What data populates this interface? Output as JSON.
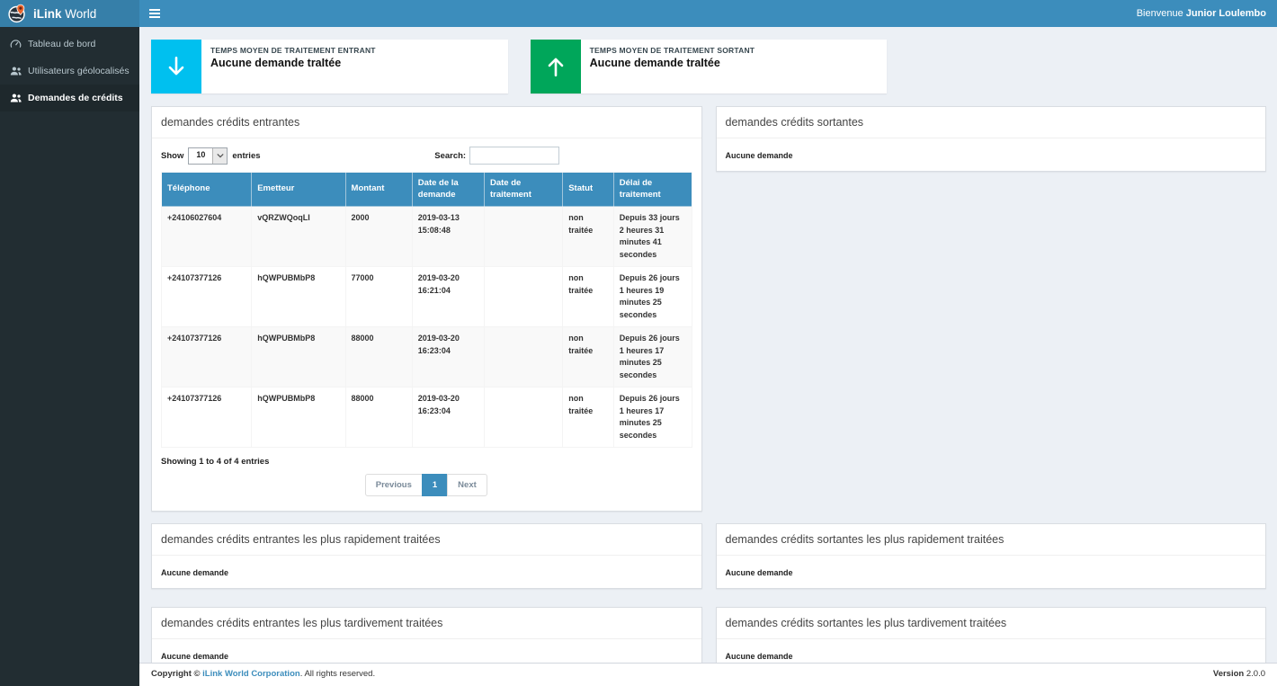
{
  "app": {
    "brand_bold": "iLink",
    "brand_regular": "World"
  },
  "colors": {
    "navbar": "#3c8dbc",
    "logo_bg": "#367fa9",
    "sidebar_bg": "#222d32",
    "active_item_bg": "#1e282c",
    "aqua": "#00c0ef",
    "green": "#00a65a",
    "content_bg": "#ecf0f5",
    "table_header": "#3c8dbc"
  },
  "navbar": {
    "menu_icon": "hamburger-icon",
    "welcome_prefix": "Bienvenue",
    "welcome_user": "Junior Loulembo"
  },
  "sidebar": {
    "items": [
      {
        "label": "Tableau de bord",
        "icon": "dashboard-icon",
        "active": false
      },
      {
        "label": "Utilisateurs géolocalisés",
        "icon": "users-icon",
        "active": false
      },
      {
        "label": "Demandes de crédits",
        "icon": "users-icon",
        "active": true
      }
    ]
  },
  "info_boxes": [
    {
      "icon": "arrow-down-icon",
      "color": "#00c0ef",
      "label": "TEMPS MOYEN DE TRAITEMENT ENTRANT",
      "value": "Aucune demande traItée"
    },
    {
      "icon": "arrow-up-icon",
      "color": "#00a65a",
      "label": "TEMPS MOYEN DE TRAITEMENT SORTANT",
      "value": "Aucune demande traItée"
    }
  ],
  "panels": {
    "entrantes": {
      "title": "demandes crédits entrantes"
    },
    "sortantes": {
      "title": "demandes crédits sortantes",
      "empty": "Aucune demande"
    },
    "entrantes_rapides": {
      "title": "demandes crédits entrantes les plus rapidement traitées",
      "empty": "Aucune demande"
    },
    "sortantes_rapides": {
      "title": "demandes crédits sortantes les plus rapidement traitées",
      "empty": "Aucune demande"
    },
    "entrantes_tardives": {
      "title": "demandes crédits entrantes les plus tardivement traitées",
      "empty": "Aucune demande"
    },
    "sortantes_tardives": {
      "title": "demandes crédits sortantes les plus tardivement traitées",
      "empty": "Aucune demande"
    }
  },
  "datatable": {
    "show_label": "Show",
    "length_value": "10",
    "entries_label": "entries",
    "search_label": "Search:",
    "search_value": "",
    "columns": [
      "Téléphone",
      "Emetteur",
      "Montant",
      "Date de la demande",
      "Date de traitement",
      "Statut",
      "Délai de traitement"
    ],
    "rows": [
      [
        "+24106027604",
        "vQRZWQoqLI",
        "2000",
        "2019-03-13 15:08:48",
        "",
        "non traitée",
        "Depuis 33 jours 2 heures 31 minutes 41 secondes"
      ],
      [
        "+24107377126",
        "hQWPUBMbP8",
        "77000",
        "2019-03-20 16:21:04",
        "",
        "non traitée",
        "Depuis 26 jours 1 heures 19 minutes 25 secondes"
      ],
      [
        "+24107377126",
        "hQWPUBMbP8",
        "88000",
        "2019-03-20 16:23:04",
        "",
        "non traitée",
        "Depuis 26 jours 1 heures 17 minutes 25 secondes"
      ],
      [
        "+24107377126",
        "hQWPUBMbP8",
        "88000",
        "2019-03-20 16:23:04",
        "",
        "non traitée",
        "Depuis 26 jours 1 heures 17 minutes 25 secondes"
      ]
    ],
    "info": "Showing 1 to 4 of 4 entries",
    "pagination": {
      "previous": "Previous",
      "current_page": "1",
      "next": "Next"
    }
  },
  "footer": {
    "copyright_bold": "Copyright ©",
    "company_link": "iLink World Corporation",
    "rights": ". All rights reserved.",
    "version_label": "Version",
    "version_value": "2.0.0"
  }
}
